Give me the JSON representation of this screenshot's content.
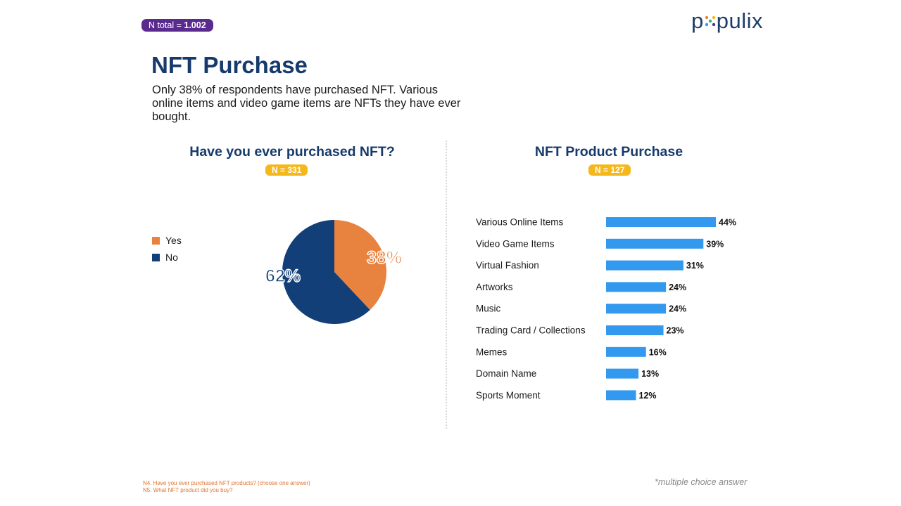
{
  "header": {
    "n_total_label": "N total = ",
    "n_total_value": "1.002",
    "logo": "populix"
  },
  "title": "NFT Purchase",
  "subtitle": "Only 38% of respondents have purchased NFT. Various online items and video game items are NFTs they have ever bought.",
  "colors": {
    "yes": "#e8823f",
    "no": "#123f78",
    "bar": "#3399ee",
    "title": "#163a6b",
    "badge_purple": "#5b2a8f",
    "badge_yellow": "#f5b81c"
  },
  "chart_data": [
    {
      "type": "pie",
      "title": "Have you ever purchased NFT?",
      "n_label": "N = 331",
      "categories": [
        "Yes",
        "No"
      ],
      "values": [
        38,
        62
      ],
      "value_labels": [
        "38%",
        "62%"
      ],
      "legend": "left"
    },
    {
      "type": "bar",
      "orientation": "horizontal",
      "title": "NFT Product Purchase",
      "n_label": "N = 127",
      "categories": [
        "Various Online Items",
        "Video Game Items",
        "Virtual Fashion",
        "Artworks",
        "Music",
        "Trading Card / Collections",
        "Memes",
        "Domain Name",
        "Sports Moment"
      ],
      "values": [
        44,
        39,
        31,
        24,
        24,
        23,
        16,
        13,
        12
      ],
      "value_labels": [
        "44%",
        "39%",
        "31%",
        "24%",
        "24%",
        "23%",
        "16%",
        "13%",
        "12%"
      ]
    }
  ],
  "footnotes": {
    "q1": "N4. Have you ever purchased NFT products? (choose one answer)",
    "q2": "N5. What NFT product did you buy?",
    "multiple_choice": "*multiple choice answer"
  }
}
